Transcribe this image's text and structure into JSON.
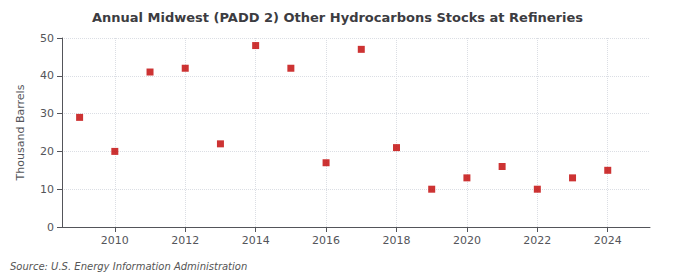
{
  "chart_data": {
    "type": "scatter",
    "title": "Annual Midwest (PADD 2) Other Hydrocarbons Stocks at Refineries",
    "ylabel": "Thousand Barrels",
    "annotation": "Source: U.S. Energy Information Administration",
    "x": [
      2009,
      2010,
      2011,
      2012,
      2013,
      2014,
      2015,
      2016,
      2017,
      2018,
      2019,
      2020,
      2021,
      2022,
      2023,
      2024
    ],
    "values": [
      29,
      20,
      41,
      42,
      22,
      48,
      42,
      17,
      47,
      21,
      10,
      13,
      16,
      10,
      13,
      15
    ],
    "color": "#c00000",
    "marker": "square",
    "xlim": [
      2008.5,
      2025.2
    ],
    "xticks": [
      2010,
      2012,
      2014,
      2016,
      2018,
      2020,
      2022,
      2024
    ],
    "ylim": [
      0,
      50
    ],
    "yticks": [
      0,
      10,
      20,
      30,
      40,
      50
    ],
    "grid": true
  }
}
